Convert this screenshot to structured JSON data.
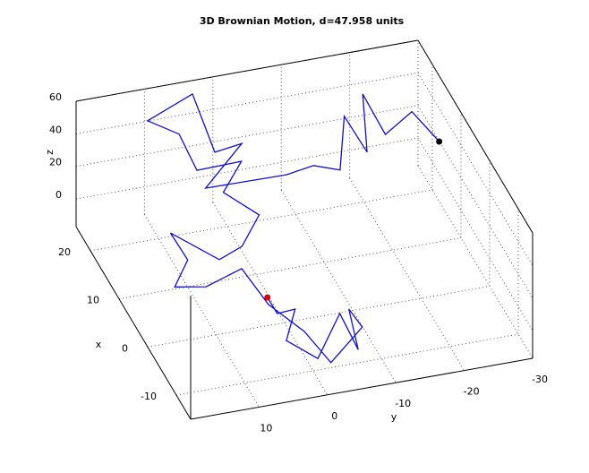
{
  "chart_data": {
    "type": "line3d",
    "title": "3D Brownian Motion, d=47.958 units",
    "xlabel": "x",
    "ylabel": "y",
    "zlabel": "z",
    "xlim": [
      -15,
      25
    ],
    "ylim": [
      -30,
      20
    ],
    "zlim": [
      -17,
      60
    ],
    "xticks": [
      -10,
      0,
      10,
      20
    ],
    "yticks": [
      -30,
      -20,
      -10,
      0,
      10
    ],
    "zticks": [
      0,
      20,
      40,
      60
    ],
    "grid": true,
    "series": [
      {
        "color": "#1010c8",
        "x": [
          -6.0,
          -6.3,
          -3.0,
          -7.1,
          -10.0,
          -3.8,
          -11.2,
          -4.8,
          -7.1,
          -11.2,
          -6.0,
          -2.8,
          1.8,
          1.1,
          0.6,
          3.7,
          7.8,
          2.7,
          2.9,
          6.7,
          10.6,
          14.3,
          14.1,
          21.5,
          22.0,
          24.0,
          16.9,
          16.1,
          12.0,
          11.8,
          11.1,
          10.9,
          17.8,
          10.3,
          18.3,
          13.0,
          16.4,
          11.4
        ],
        "y": [
          5.0,
          3.7,
          -0.3,
          2.7,
          -0.7,
          -6.5,
          -6.1,
          -7.4,
          -8.4,
          -2.1,
          -0.4,
          3.5,
          5.5,
          11.0,
          15.8,
          12.6,
          13.4,
          8.4,
          5.0,
          0.9,
          4.5,
          0.3,
          6.9,
          6.4,
          10.8,
          3.4,
          3.1,
          -0.5,
          6.5,
          -5.2,
          -8.9,
          -12.7,
          -16.2,
          -16.4,
          -19.1,
          -20.2,
          -25.5,
          -27.4
        ],
        "z": [
          20,
          10,
          0,
          -5,
          -10,
          -5,
          -5,
          0,
          -5,
          -10,
          -5,
          5,
          15,
          10,
          15,
          20,
          25,
          20,
          25,
          30,
          35,
          40,
          40,
          40,
          50,
          55,
          40,
          45,
          35,
          35,
          40,
          35,
          45,
          45,
          55,
          45,
          45,
          40
        ]
      }
    ],
    "start_marker_color": "#dd0000",
    "end_marker_color": "#000000"
  }
}
